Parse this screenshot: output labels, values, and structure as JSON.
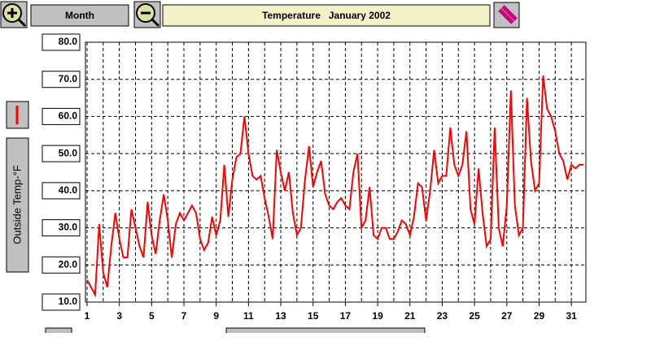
{
  "ui": {
    "period": "Month"
  },
  "chart_data": {
    "type": "line",
    "title": "Temperature   January 2002",
    "series": [
      {
        "name": "Outside Temp-°F",
        "color": "#ff0000",
        "x": [
          1,
          1.25,
          1.5,
          1.75,
          2,
          2.25,
          2.5,
          2.75,
          3,
          3.25,
          3.5,
          3.75,
          4,
          4.25,
          4.5,
          4.75,
          5,
          5.25,
          5.5,
          5.75,
          6,
          6.25,
          6.5,
          6.75,
          7,
          7.25,
          7.5,
          7.75,
          8,
          8.25,
          8.5,
          8.75,
          9,
          9.25,
          9.5,
          9.75,
          10,
          10.25,
          10.5,
          10.75,
          11,
          11.25,
          11.5,
          11.75,
          12,
          12.25,
          12.5,
          12.75,
          13,
          13.25,
          13.5,
          13.75,
          14,
          14.25,
          14.5,
          14.75,
          15,
          15.25,
          15.5,
          15.75,
          16,
          16.25,
          16.5,
          16.75,
          17,
          17.25,
          17.5,
          17.75,
          18,
          18.25,
          18.5,
          18.75,
          19,
          19.25,
          19.5,
          19.75,
          20,
          20.25,
          20.5,
          20.75,
          21,
          21.25,
          21.5,
          21.75,
          22,
          22.25,
          22.5,
          22.75,
          23,
          23.25,
          23.5,
          23.75,
          24,
          24.25,
          24.5,
          24.75,
          25,
          25.25,
          25.5,
          25.75,
          26,
          26.25,
          26.5,
          26.75,
          27,
          27.25,
          27.5,
          27.75,
          28,
          28.25,
          28.5,
          28.75,
          29,
          29.25,
          29.5,
          29.75,
          30,
          30.25,
          30.5,
          30.75,
          31,
          31.25,
          31.5,
          31.75
        ],
        "values": [
          16,
          14,
          12,
          31,
          18,
          14,
          25,
          34,
          27,
          22,
          22,
          35,
          30,
          25,
          22,
          37,
          28,
          23,
          32,
          39,
          32,
          22,
          31,
          34,
          32,
          34,
          36,
          34,
          27,
          24,
          26,
          33,
          28,
          32,
          47,
          33,
          43,
          49,
          50,
          60,
          50,
          44,
          43,
          44,
          38,
          33,
          27,
          51,
          45,
          40,
          45,
          34,
          28,
          30,
          43,
          52,
          41,
          45,
          48,
          39,
          36,
          35,
          37,
          38,
          36,
          35,
          45,
          50,
          30,
          32,
          41,
          28,
          27,
          30,
          30,
          27,
          27,
          29,
          32,
          31,
          28,
          33,
          42,
          41,
          32,
          40,
          51,
          42,
          44,
          44,
          57,
          47,
          44,
          47,
          56,
          35,
          31,
          46,
          34,
          25,
          27,
          57,
          30,
          25,
          36,
          67,
          36,
          28,
          30,
          65,
          48,
          40,
          42,
          71,
          62,
          60,
          56,
          50,
          48,
          43,
          47,
          46,
          47,
          47
        ]
      }
    ],
    "xlim": [
      0.9,
      31.9
    ],
    "xticks": [
      1,
      3,
      5,
      7,
      9,
      11,
      13,
      15,
      17,
      19,
      21,
      23,
      25,
      27,
      29,
      31
    ],
    "xminor": [
      2,
      4,
      6,
      8,
      10,
      12,
      14,
      16,
      18,
      20,
      22,
      24,
      26,
      28,
      30
    ],
    "ylim": [
      10,
      80
    ],
    "yticks": [
      {
        "value": 10,
        "label": "10.0"
      },
      {
        "value": 20,
        "label": "20.0"
      },
      {
        "value": 30,
        "label": "30.0"
      },
      {
        "value": 40,
        "label": "40.0"
      },
      {
        "value": 50,
        "label": "50.0"
      },
      {
        "value": 60,
        "label": "60.0"
      },
      {
        "value": 70,
        "label": "70.0"
      },
      {
        "value": 80,
        "label": "80.0"
      }
    ],
    "grid": true
  }
}
